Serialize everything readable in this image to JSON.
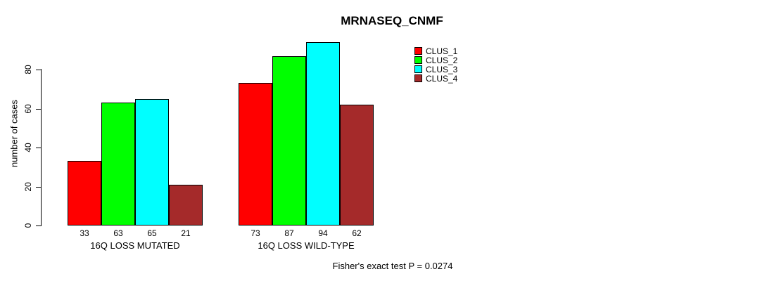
{
  "title": "MRNASEQ_CNMF",
  "chart_data": {
    "type": "bar",
    "categories": [
      "16Q LOSS MUTATED",
      "16Q LOSS WILD-TYPE"
    ],
    "series": [
      {
        "name": "CLUS_1",
        "color": "#ff0000",
        "values": [
          33,
          73
        ]
      },
      {
        "name": "CLUS_2",
        "color": "#00ff00",
        "values": [
          63,
          87
        ]
      },
      {
        "name": "CLUS_3",
        "color": "#00ffff",
        "values": [
          65,
          94
        ]
      },
      {
        "name": "CLUS_4",
        "color": "#a52a2a",
        "values": [
          21,
          62
        ]
      }
    ],
    "ylabel": "number of cases",
    "xlabel": "",
    "yticks": [
      0,
      20,
      40,
      60,
      80
    ],
    "ylim": [
      0,
      94
    ],
    "bar_value_labels": true,
    "legend_position": "top-right",
    "grid": false
  },
  "footer": {
    "stat_text": "Fisher's exact test P = 0.0274"
  }
}
